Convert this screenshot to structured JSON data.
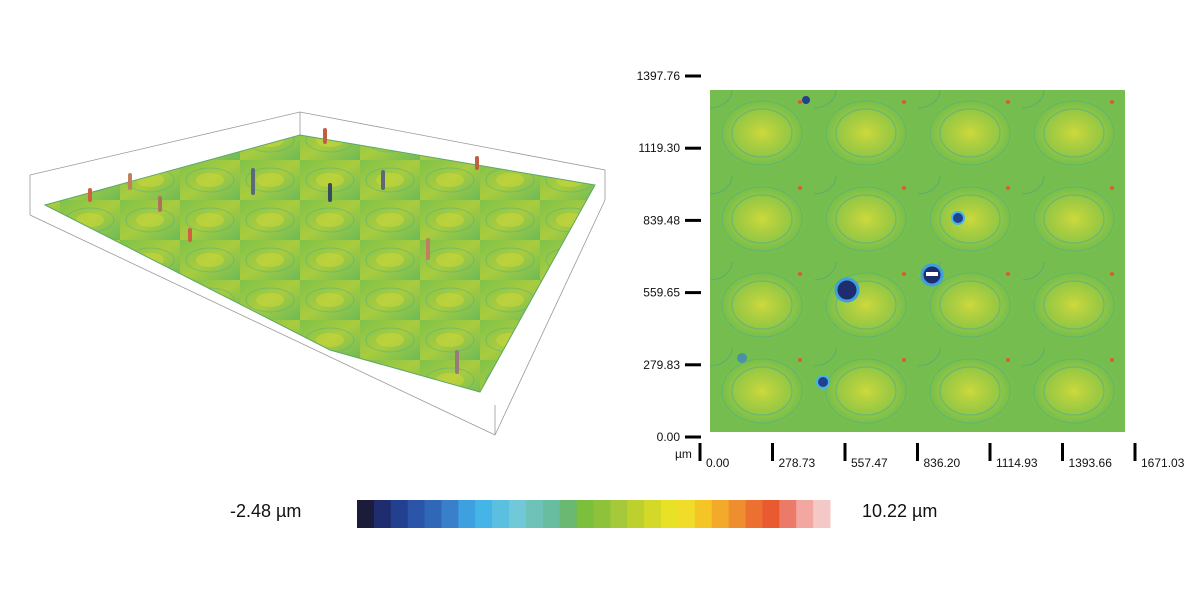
{
  "height_map": {
    "unit": "µm",
    "yticks": [
      "1397.76",
      "1119.30",
      "839.48",
      "559.65",
      "279.83",
      "0.00"
    ],
    "xticks": [
      "0.00",
      "278.73",
      "557.47",
      "836.20",
      "1114.93",
      "1393.66",
      "1671.03"
    ]
  },
  "colorbar": {
    "min_label": "-2.48 µm",
    "max_label": "10.22 µm",
    "colors": [
      "#1b1b3a",
      "#1f2d6e",
      "#233f8f",
      "#2a55a8",
      "#3068b8",
      "#3a7fc9",
      "#3fa0e0",
      "#45b5e8",
      "#5bc0e0",
      "#70c8d8",
      "#6fc2b8",
      "#68bda0",
      "#6ab872",
      "#7bbf3c",
      "#8dc23a",
      "#a5c93a",
      "#bdd12e",
      "#d4d928",
      "#e8e226",
      "#f2dc2a",
      "#f5c526",
      "#f3a92a",
      "#ef8e2e",
      "#ec7030",
      "#e95a30",
      "#ec7a68",
      "#f2a8a0",
      "#f5c8c8"
    ]
  }
}
